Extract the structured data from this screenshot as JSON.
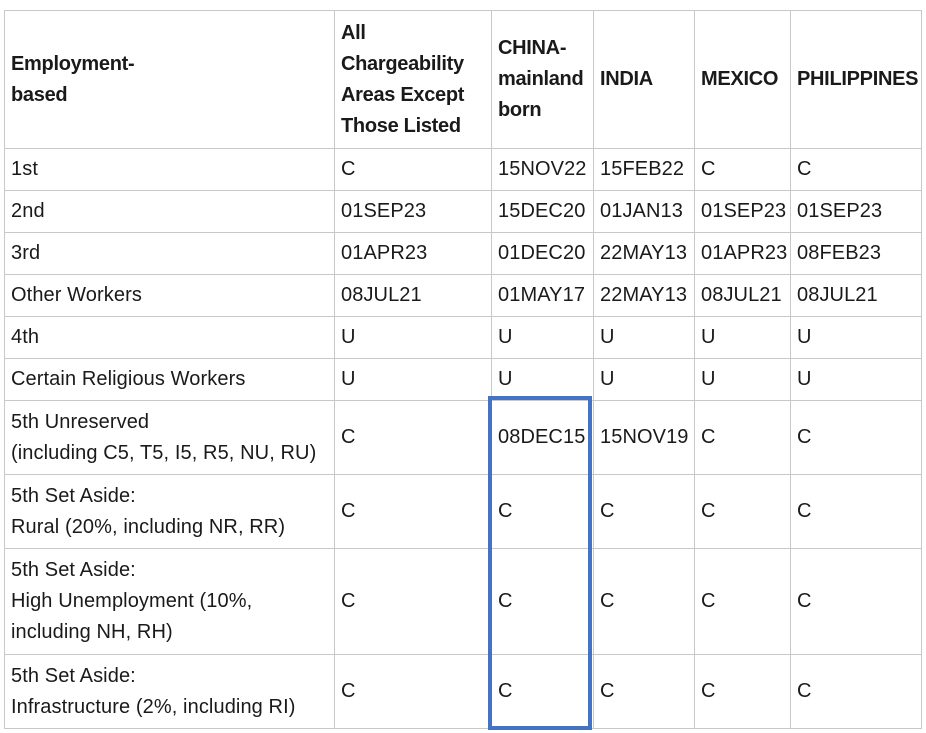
{
  "table": {
    "headers": [
      "Employment-\nbased",
      "All\nChargeability\nAreas Except\nThose Listed",
      "CHINA-\nmainland\nborn",
      "INDIA",
      "MEXICO",
      "PHILIPPINES"
    ],
    "rows": [
      [
        "1st",
        "C",
        "15NOV22",
        "15FEB22",
        "C",
        "C"
      ],
      [
        "2nd",
        "01SEP23",
        "15DEC20",
        "01JAN13",
        "01SEP23",
        "01SEP23"
      ],
      [
        "3rd",
        "01APR23",
        "01DEC20",
        "22MAY13",
        "01APR23",
        "08FEB23"
      ],
      [
        "Other Workers",
        "08JUL21",
        "01MAY17",
        "22MAY13",
        "08JUL21",
        "08JUL21"
      ],
      [
        "4th",
        "U",
        "U",
        "U",
        "U",
        "U"
      ],
      [
        "Certain Religious Workers",
        "U",
        "U",
        "U",
        "U",
        "U"
      ],
      [
        "5th Unreserved\n(including C5, T5, I5, R5, NU, RU)",
        "C",
        "08DEC15",
        "15NOV19",
        "C",
        "C"
      ],
      [
        "5th Set Aside:\nRural (20%, including NR, RR)",
        "C",
        "C",
        "C",
        "C",
        "C"
      ],
      [
        "5th Set Aside:\nHigh Unemployment (10%,\nincluding NH, RH)",
        "C",
        "C",
        "C",
        "C",
        "C"
      ],
      [
        "5th Set Aside:\nInfrastructure (2%, including RI)",
        "C",
        "C",
        "C",
        "C",
        "C"
      ]
    ]
  },
  "highlight": {
    "color": "#4472c4",
    "column": "CHINA-\nmainland\nborn"
  }
}
